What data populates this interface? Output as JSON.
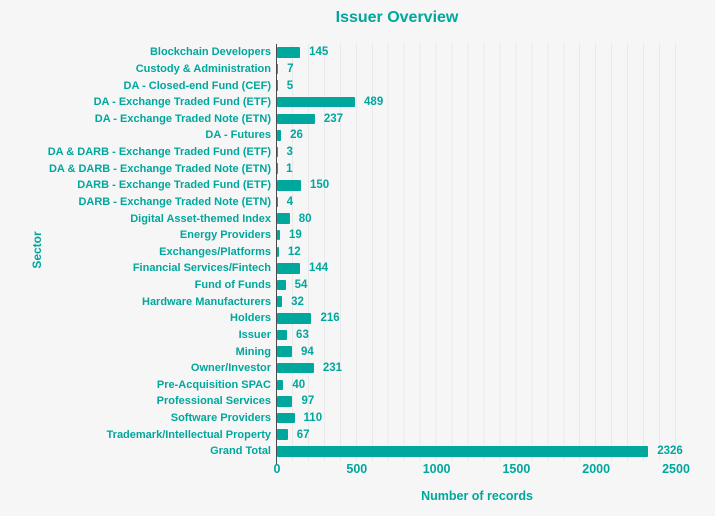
{
  "title": "Issuer Overview",
  "colors": {
    "accent": "#00a79c",
    "background": "#f6f6f7",
    "gridline": "#e9e9ec",
    "axis_line": "#4a4a4a"
  },
  "chart_data": {
    "type": "bar",
    "orientation": "horizontal",
    "title": "Issuer Overview",
    "xlabel": "Number of records",
    "ylabel": "Sector",
    "xlim": [
      0,
      2500
    ],
    "x_ticks": [
      0,
      500,
      1000,
      1500,
      2000,
      2500
    ],
    "grid": "minor vertical gridlines every 100 units",
    "legend": "none",
    "bar_color": "#00a79c",
    "categories": [
      "Blockchain Developers",
      "Custody & Administration",
      "DA - Closed-end Fund (CEF)",
      "DA - Exchange Traded Fund (ETF)",
      "DA - Exchange Traded Note (ETN)",
      "DA - Futures",
      "DA & DARB - Exchange Traded Fund (ETF)",
      "DA & DARB - Exchange Traded Note (ETN)",
      "DARB - Exchange Traded Fund (ETF)",
      "DARB - Exchange Traded Note (ETN)",
      "Digital Asset-themed Index",
      "Energy Providers",
      "Exchanges/Platforms",
      "Financial Services/Fintech",
      "Fund of Funds",
      "Hardware Manufacturers",
      "Holders",
      "Issuer",
      "Mining",
      "Owner/Investor",
      "Pre-Acquisition SPAC",
      "Professional Services",
      "Software Providers",
      "Trademark/Intellectual Property",
      "Grand Total"
    ],
    "values": [
      145,
      7,
      5,
      489,
      237,
      26,
      3,
      1,
      150,
      4,
      80,
      19,
      12,
      144,
      54,
      32,
      216,
      63,
      94,
      231,
      40,
      97,
      110,
      67,
      2326
    ]
  }
}
